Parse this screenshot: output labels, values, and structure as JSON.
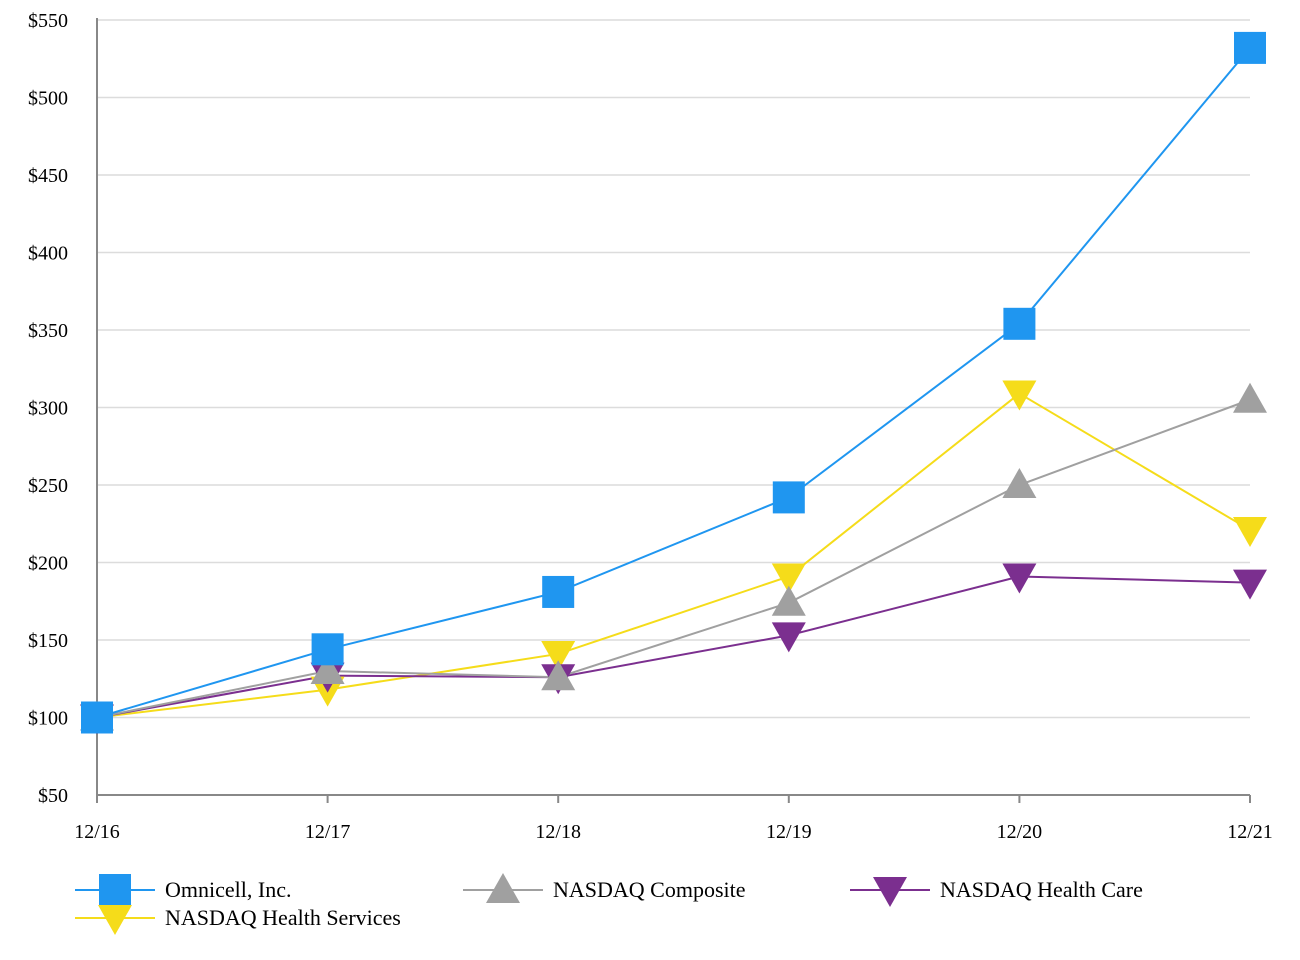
{
  "chart_data": {
    "type": "line",
    "title": "",
    "xlabel": "",
    "ylabel": "",
    "categories": [
      "12/16",
      "12/17",
      "12/18",
      "12/19",
      "12/20",
      "12/21"
    ],
    "ylim": [
      50,
      550
    ],
    "yticks": [
      50,
      100,
      150,
      200,
      250,
      300,
      350,
      400,
      450,
      500,
      550
    ],
    "ytick_labels": [
      "$50",
      "$100",
      "$150",
      "$200",
      "$250",
      "$300",
      "$350",
      "$400",
      "$450",
      "$500",
      "$550"
    ],
    "grid": "horizontal",
    "legend_position": "bottom",
    "series": [
      {
        "name": "Omnicell, Inc.",
        "color": "#1f96f0",
        "marker": "square",
        "values": [
          100,
          144,
          181,
          242,
          354,
          532
        ]
      },
      {
        "name": "NASDAQ Composite",
        "color": "#a0a0a0",
        "marker": "triangle-up",
        "values": [
          100,
          130,
          126,
          174,
          250,
          305
        ]
      },
      {
        "name": "NASDAQ Health Care",
        "color": "#7b2f8f",
        "marker": "triangle-down",
        "values": [
          100,
          127,
          126,
          153,
          191,
          187
        ]
      },
      {
        "name": "NASDAQ Health Services",
        "color": "#f5dc1a",
        "marker": "triangle-down",
        "values": [
          100,
          118,
          141,
          191,
          309,
          221
        ]
      }
    ]
  }
}
